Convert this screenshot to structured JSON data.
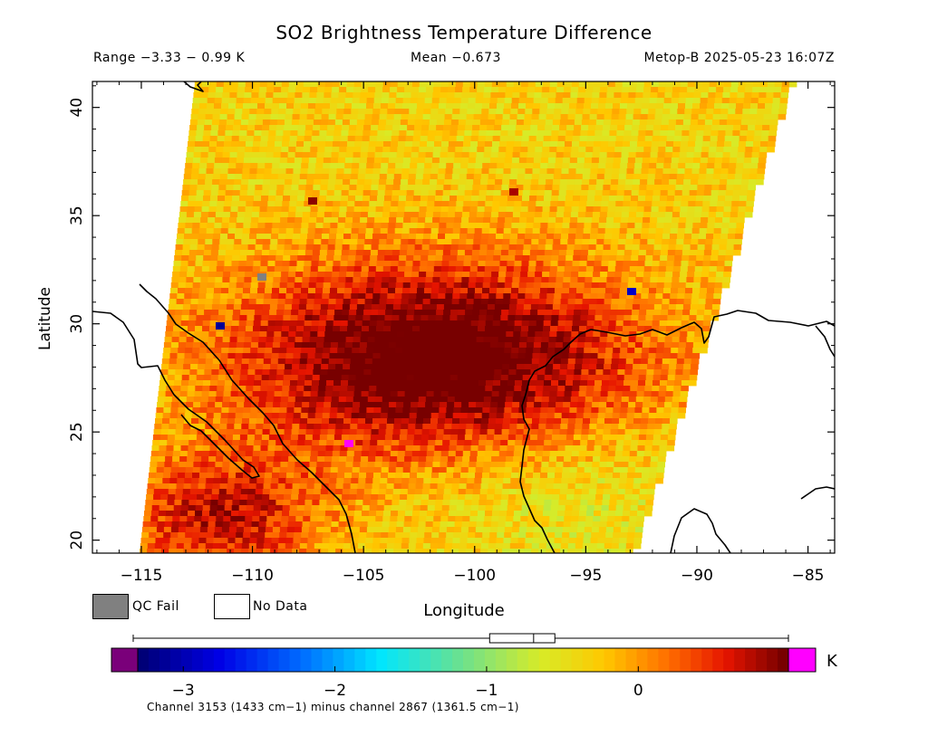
{
  "header": {
    "title": "SO2 Brightness Temperature Difference",
    "range": "Range −3.33 − 0.99 K",
    "mean": "Mean −0.673",
    "satellite": "Metop-B 2025-05-23 16:07Z"
  },
  "axes": {
    "xlabel": "Longitude",
    "ylabel": "Latitude",
    "xticks": [
      "−115",
      "−110",
      "−105",
      "−100",
      "−95",
      "−90",
      "−85"
    ],
    "yticks": [
      "20",
      "25",
      "30",
      "35",
      "40"
    ],
    "x_values": [
      -115,
      -110,
      -105,
      -100,
      -95,
      -90,
      -85
    ],
    "y_values": [
      20,
      25,
      30,
      35,
      40
    ],
    "xlim": [
      -117.2,
      -83.8
    ],
    "ylim": [
      19.4,
      41.2
    ]
  },
  "legend": {
    "qc_fail": "QC Fail",
    "no_data": "No Data",
    "qc_color": "#808080",
    "nodata_color": "#ffffff"
  },
  "colorbar": {
    "units": "K",
    "ticks": [
      "−3",
      "−2",
      "−1",
      "0"
    ],
    "tick_values": [
      -3,
      -2,
      -1,
      0
    ],
    "min": -3.5,
    "max": 0.0,
    "display_min": -3.3,
    "display_max": 0.99,
    "under_color": "#7a007a",
    "over_color": "#ff00ff",
    "boxplot": {
      "whisker_low": -3.33,
      "q1": -0.98,
      "median": -0.69,
      "q3": -0.55,
      "whisker_high": 0.99
    }
  },
  "footnote": "Channel 3153 (1433 cm−1) minus channel 2867 (1361.5 cm−1)",
  "chart_data": {
    "type": "heatmap",
    "title": "SO2 Brightness Temperature Difference",
    "xlabel": "Longitude",
    "ylabel": "Latitude",
    "xlim": [
      -117.2,
      -83.8
    ],
    "ylim": [
      19.4,
      41.2
    ],
    "value_range": [
      -3.33,
      0.99
    ],
    "mean": -0.673,
    "units": "K",
    "hotspot": {
      "lon": -102,
      "lat": 28.5,
      "value": 0.6
    },
    "swath_corners": {
      "lon": [
        -112.6,
        -85.8,
        -93.0,
        -115.1
      ],
      "lat": [
        41.2,
        41.2,
        19.4,
        19.4
      ]
    }
  }
}
